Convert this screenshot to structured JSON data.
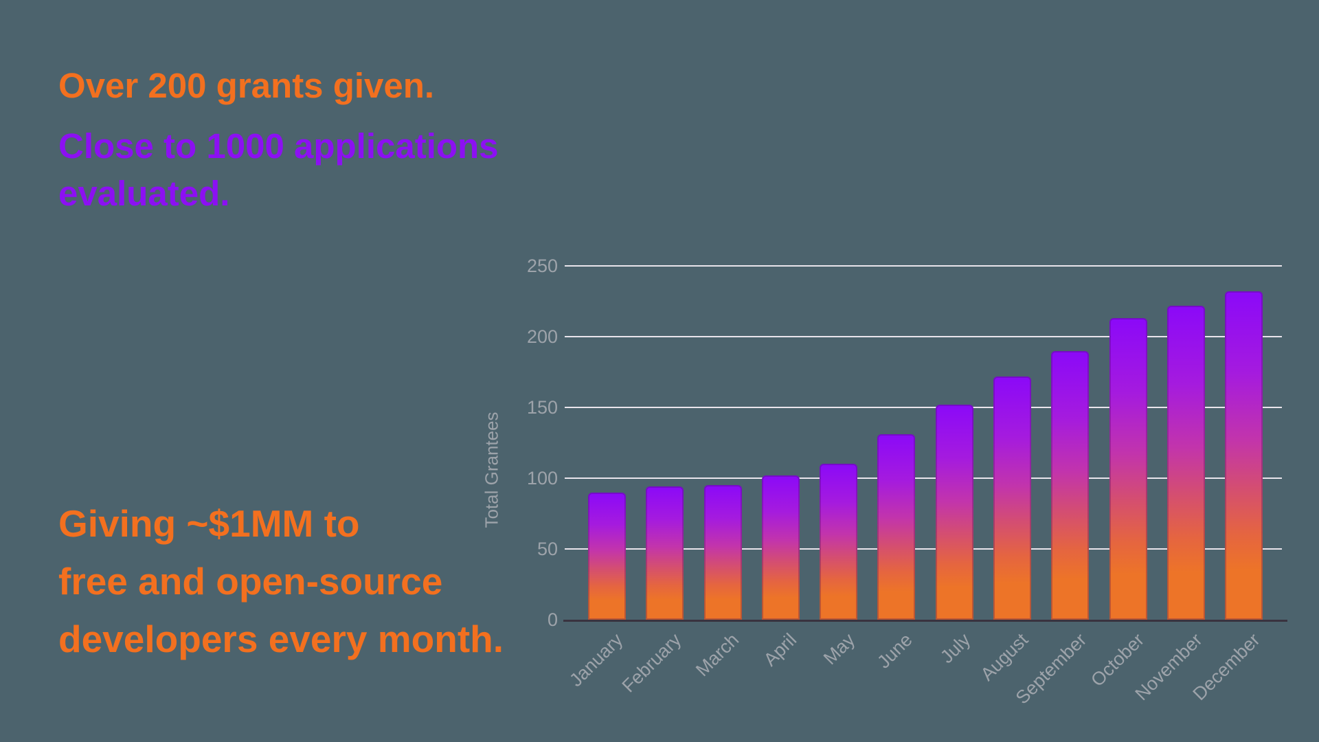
{
  "slide": {
    "background_color": "#4C636D",
    "headline": {
      "orange_line": "Over 200 grants given.",
      "orange_color": "#F3701F",
      "purple_lines": [
        "Close to 1000 applications",
        "evaluated."
      ],
      "purple_color": "#8C10F2"
    },
    "footline": {
      "lines": [
        "Giving ~$1MM to",
        "free and open-source",
        "developers every month."
      ],
      "color": "#F3701F"
    }
  },
  "chart_data": {
    "type": "bar",
    "title": "",
    "xlabel": "",
    "ylabel": "Total Grantees",
    "categories": [
      "January",
      "February",
      "March",
      "April",
      "May",
      "June",
      "July",
      "August",
      "September",
      "October",
      "November",
      "December"
    ],
    "values": [
      90,
      94,
      95,
      102,
      110,
      131,
      152,
      172,
      190,
      213,
      222,
      232
    ],
    "ylim": [
      0,
      250
    ],
    "yticks": [
      0,
      50,
      100,
      150,
      200,
      250
    ],
    "grid": true,
    "legend_position": "none",
    "colors": {
      "bar_gradient_top": "#8B09F8",
      "bar_gradient_bottom": "#ED7428",
      "gridline": "#E9E5EC",
      "axis_line": "#39333F",
      "tick_label": "#9DA3AA"
    }
  }
}
